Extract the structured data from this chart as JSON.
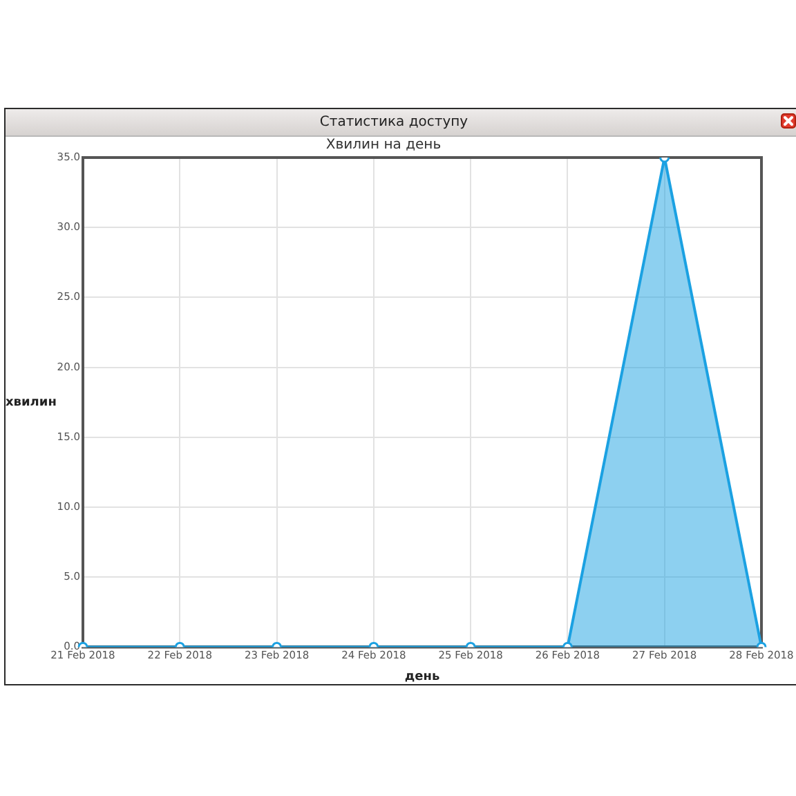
{
  "chart_data": {
    "type": "area",
    "title": "Статистика доступу",
    "subtitle": "Хвилин на день",
    "xlabel": "день",
    "ylabel": "хвилин",
    "categories": [
      "21 Feb 2018",
      "22 Feb 2018",
      "23 Feb 2018",
      "24 Feb 2018",
      "25 Feb 2018",
      "26 Feb 2018",
      "27 Feb 2018",
      "28 Feb 2018"
    ],
    "values": [
      0,
      0,
      0,
      0,
      0,
      0,
      35,
      0
    ],
    "color": "#1ba1e2",
    "ylim": [
      0,
      35
    ],
    "yticks": [
      {
        "value": 0,
        "label": "0.0"
      },
      {
        "value": 5,
        "label": "5.0"
      },
      {
        "value": 10,
        "label": "10.0"
      },
      {
        "value": 15,
        "label": "15.0"
      },
      {
        "value": 20,
        "label": "20.0"
      },
      {
        "value": 25,
        "label": "25.0"
      },
      {
        "value": 30,
        "label": "30.0"
      },
      {
        "value": 35,
        "label": "35.0"
      }
    ],
    "grid": true,
    "marker": "circle",
    "line_style": "solid"
  }
}
